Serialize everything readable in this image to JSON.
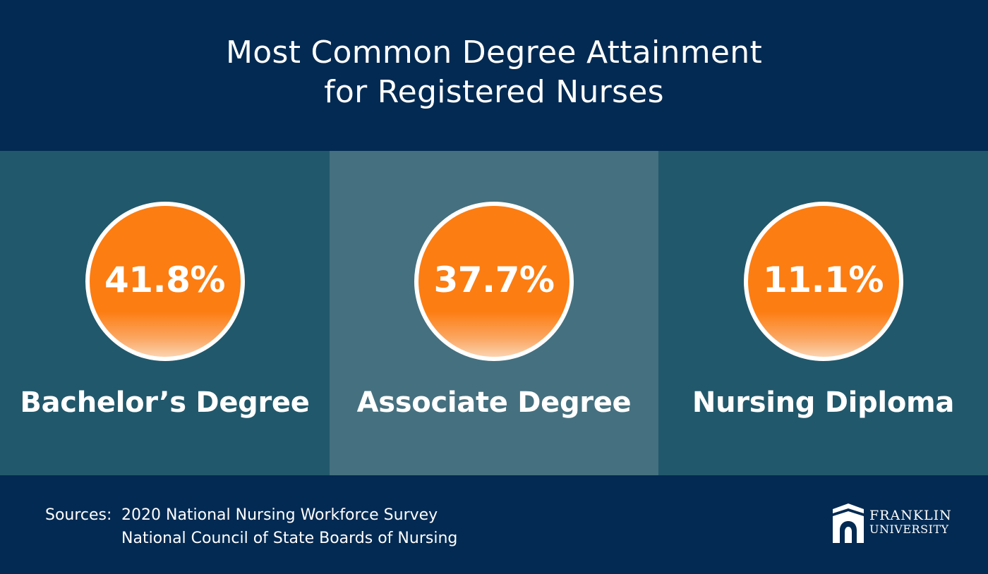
{
  "header": {
    "title_line1": "Most Common Degree Attainment",
    "title_line2": "for Registered Nurses"
  },
  "stats": [
    {
      "value": "41.8%",
      "label": "Bachelor’s Degree"
    },
    {
      "value": "37.7%",
      "label": "Associate Degree"
    },
    {
      "value": "11.1%",
      "label": "Nursing Diploma"
    }
  ],
  "sources": {
    "label": "Sources:",
    "line1": "2020 National Nursing Workforce Survey",
    "line2": "National Council of State Boards of Nursing"
  },
  "logo": {
    "icon": "franklin-arch-icon",
    "line1": "FRANKLIN",
    "line2": "UNIVERSITY"
  },
  "colors": {
    "navy": "#032a52",
    "teal_dark": "#22586b",
    "teal_light": "#45707f",
    "orange": "#fc7d12",
    "white": "#ffffff"
  }
}
